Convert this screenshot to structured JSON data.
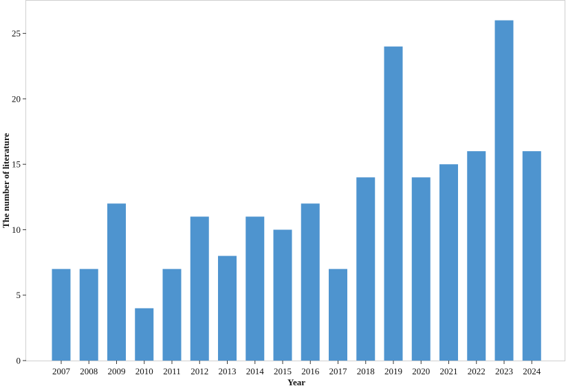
{
  "chart_data": {
    "type": "bar",
    "title": "",
    "xlabel": "Year",
    "ylabel": "The number of literature",
    "categories": [
      "2007",
      "2008",
      "2009",
      "2010",
      "2011",
      "2012",
      "2013",
      "2014",
      "2015",
      "2016",
      "2017",
      "2018",
      "2019",
      "2020",
      "2021",
      "2022",
      "2023",
      "2024"
    ],
    "values": [
      7,
      7,
      12,
      4,
      7,
      11,
      8,
      11,
      10,
      12,
      7,
      14,
      24,
      14,
      15,
      16,
      26,
      16
    ],
    "ylim": [
      0,
      27.5
    ],
    "yticks": [
      "0",
      "5",
      "10",
      "15",
      "20",
      "25"
    ],
    "grid": false,
    "legend": "none",
    "bar_color": "#4e94cf"
  }
}
